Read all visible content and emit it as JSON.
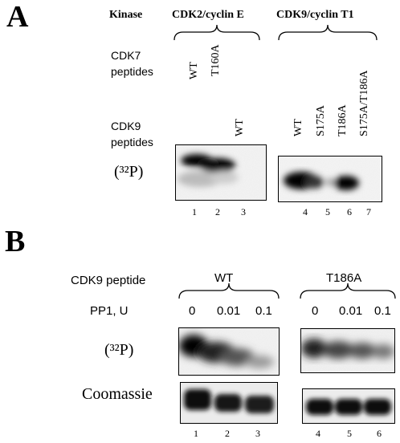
{
  "panelA": {
    "letter": "A",
    "kinase_label": "Kinase",
    "group1_title": "CDK2/cyclin E",
    "group2_title": "CDK9/cyclin T1",
    "cdk7_label_line1": "CDK7",
    "cdk7_label_line2": "peptides",
    "cdk7_lanes": [
      "WT",
      "T160A"
    ],
    "cdk9_label_line1": "CDK9",
    "cdk9_label_line2": "peptides",
    "cdk9_lane3": "WT",
    "cdk9_lanes_group2": [
      "WT",
      "S175A",
      "T186A",
      "S175A/T186A"
    ],
    "blot_label": "(³²P)",
    "lane_numbers": [
      "1",
      "2",
      "3",
      "4",
      "5",
      "6",
      "7"
    ]
  },
  "panelB": {
    "letter": "B",
    "cdk9_peptide_label": "CDK9 peptide",
    "group1_title": "WT",
    "group2_title": "T186A",
    "pp1_label": "PP1, U",
    "pp1_doses_group1": [
      "0",
      "0.01",
      "0.1"
    ],
    "pp1_doses_group2": [
      "0",
      "0.01",
      "0.1"
    ],
    "blot_label": "(³²P)",
    "coomassie_label": "Coomassie",
    "lane_numbers_group1": [
      "1",
      "2",
      "3"
    ],
    "lane_numbers_group2": [
      "4",
      "5",
      "6"
    ]
  }
}
